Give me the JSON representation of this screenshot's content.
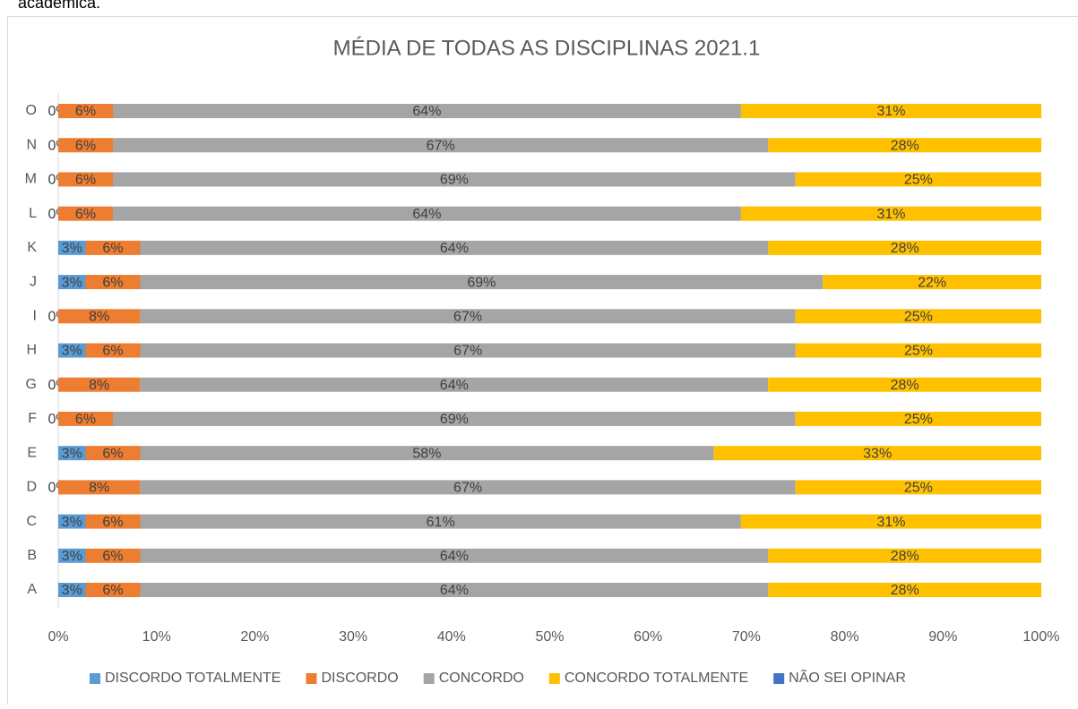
{
  "page_text": "acadêmica.",
  "chart_data": {
    "type": "stacked-bar-horizontal",
    "title": "MÉDIA DE TODAS AS DISCIPLINAS 2021.1",
    "categories": [
      "A",
      "B",
      "C",
      "D",
      "E",
      "F",
      "G",
      "H",
      "I",
      "J",
      "K",
      "L",
      "M",
      "N",
      "O"
    ],
    "series": [
      {
        "name": "DISCORDO TOTALMENTE",
        "color": "#5b9bd5",
        "values": [
          2.78,
          2.78,
          2.78,
          0,
          2.78,
          0,
          0,
          2.78,
          0,
          2.78,
          2.78,
          0,
          0,
          0,
          0
        ],
        "value_labels": [
          "3%",
          "3%",
          "3%",
          "0%",
          "3%",
          "0%",
          "0%",
          "3%",
          "0%",
          "3%",
          "3%",
          "0%",
          "0%",
          "0%",
          "0%"
        ]
      },
      {
        "name": "DISCORDO",
        "color": "#ed7d31",
        "values": [
          5.56,
          5.56,
          5.56,
          8.33,
          5.56,
          5.56,
          8.33,
          5.56,
          8.33,
          5.56,
          5.56,
          5.56,
          5.56,
          5.56,
          5.56
        ],
        "value_labels": [
          "6%",
          "6%",
          "6%",
          "8%",
          "6%",
          "6%",
          "8%",
          "6%",
          "8%",
          "6%",
          "6%",
          "6%",
          "6%",
          "6%",
          "6%"
        ]
      },
      {
        "name": "CONCORDO",
        "color": "#a5a5a5",
        "values": [
          63.89,
          63.89,
          61.11,
          66.67,
          58.33,
          69.44,
          63.89,
          66.67,
          66.67,
          69.44,
          63.89,
          63.89,
          69.44,
          66.67,
          63.89
        ],
        "value_labels": [
          "64%",
          "64%",
          "61%",
          "67%",
          "58%",
          "69%",
          "64%",
          "67%",
          "67%",
          "69%",
          "64%",
          "64%",
          "69%",
          "67%",
          "64%"
        ]
      },
      {
        "name": "CONCORDO TOTALMENTE",
        "color": "#ffc000",
        "values": [
          27.78,
          27.78,
          30.56,
          25,
          33.33,
          25,
          27.78,
          25,
          25,
          22.22,
          27.78,
          30.56,
          25,
          27.78,
          30.56
        ],
        "value_labels": [
          "28%",
          "28%",
          "31%",
          "25%",
          "33%",
          "25%",
          "28%",
          "25%",
          "25%",
          "22%",
          "28%",
          "31%",
          "25%",
          "28%",
          "31%"
        ]
      },
      {
        "name": "NÃO SEI OPINAR",
        "color": "#4472c4",
        "values": [
          0,
          0,
          0,
          0,
          0,
          0,
          0,
          0,
          0,
          0,
          0,
          0,
          0,
          0,
          0
        ]
      }
    ],
    "xlim": [
      0,
      100
    ],
    "xticks": [
      {
        "value": 0,
        "label": "0%"
      },
      {
        "value": 10,
        "label": "10%"
      },
      {
        "value": 20,
        "label": "20%"
      },
      {
        "value": 30,
        "label": "30%"
      },
      {
        "value": 40,
        "label": "40%"
      },
      {
        "value": 50,
        "label": "50%"
      },
      {
        "value": 60,
        "label": "60%"
      },
      {
        "value": 70,
        "label": "70%"
      },
      {
        "value": 80,
        "label": "80%"
      },
      {
        "value": 90,
        "label": "90%"
      },
      {
        "value": 100,
        "label": "100%"
      }
    ],
    "legend": "bottom"
  }
}
